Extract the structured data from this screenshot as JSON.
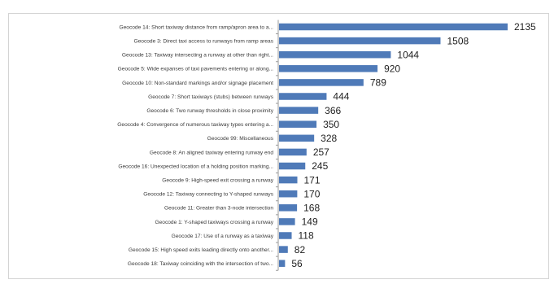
{
  "chart_data": {
    "type": "bar",
    "orientation": "horizontal",
    "title": "",
    "xlabel": "",
    "ylabel": "",
    "grid": false,
    "legend": "none",
    "bar_color": "#4f7ab8",
    "xlim": [
      0,
      2135
    ],
    "categories": [
      "Geocode 14: Short taxiway distance from ramp/apron area to a...",
      "Geocode 3: Direct taxi access to runways from ramp areas",
      "Geocode 13: Taxiway intersecting a runway at other than right...",
      "Geocode 5: Wide expanses of taxi pavements entering or along...",
      "Geocode 10: Non-standard markings and/or signage placement",
      "Geocode 7: Short taxiways (stubs) between runways",
      "Geocode 6: Two runway thresholds in close proximity",
      "Geocode 4: Convergence of numerous taxiway types entering a...",
      "Geocode 99: Miscellaneous",
      "Geocode 8: An aligned taxiway entering runway end",
      "Geocode 16: Unexpected location of a holding position marking...",
      "Geocode 9: High-speed exit crossing a runway",
      "Geocode 12: Taxiway connecting to Y-shaped runways",
      "Geocode 11: Greater than 3-node intersection",
      "Geocode 1: Y-shaped taxiways crossing a runway",
      "Geocode 17: Use of a runway as a taxiway",
      "Geocode 15: High speed exits leading directly onto another...",
      "Geocode 18: Taxiway coinciding with the intersection of two..."
    ],
    "values": [
      2135,
      1508,
      1044,
      920,
      789,
      444,
      366,
      350,
      328,
      257,
      245,
      171,
      170,
      168,
      149,
      118,
      82,
      56
    ]
  }
}
